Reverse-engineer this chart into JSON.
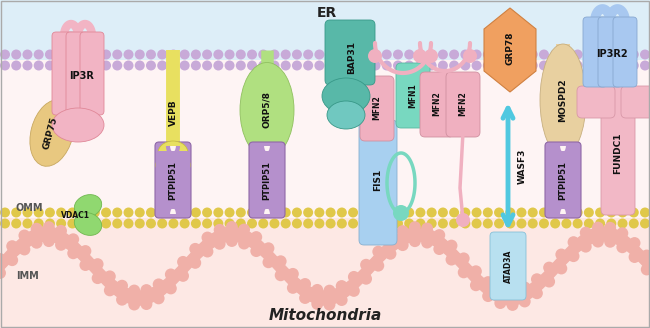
{
  "title": "Mitochondria",
  "er_label": "ER",
  "omm_label": "OMM",
  "imm_label": "IMM",
  "bg_er_lumen": "#ddeef8",
  "bg_cytoplasm": "#fef8f8",
  "bg_mito_matrix": "#fde8e4",
  "er_mem_color": "#c8aad8",
  "omm_mem_color": "#e8d060",
  "imm_color": "#f0b0a8"
}
